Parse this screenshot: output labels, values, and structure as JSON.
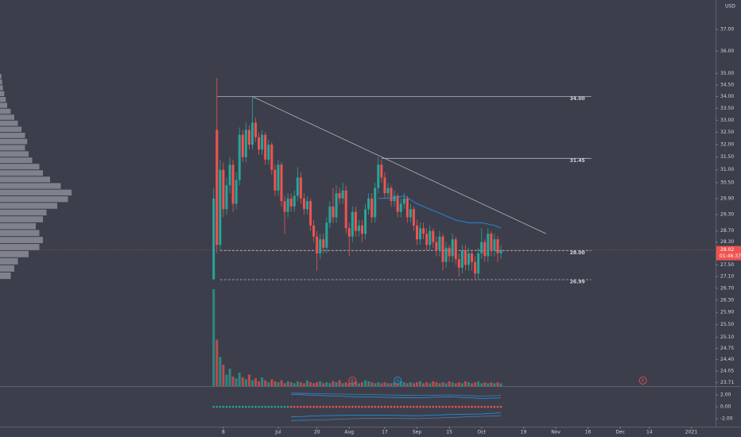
{
  "chart_data": {
    "type": "candlestick",
    "currency": "USD",
    "log_scale": true,
    "colors": {
      "up": "#26a69a",
      "down": "#ef5350",
      "profile": "#9598a1",
      "line": "#b2b5be",
      "ma": "#2196f3",
      "event": "#ef5350"
    },
    "xlim": [
      -69.2,
      152.5
    ],
    "ylim": [
      23.6,
      38.4
    ],
    "yticks": [
      {
        "value": 37,
        "label": "37.00"
      },
      {
        "value": 36,
        "label": "36.00"
      },
      {
        "value": 35,
        "label": "35.00"
      },
      {
        "value": 34.5,
        "label": "34.50"
      },
      {
        "value": 34,
        "label": "34.00"
      },
      {
        "value": 33.5,
        "label": "33.50"
      },
      {
        "value": 33,
        "label": "33.00"
      },
      {
        "value": 32.5,
        "label": "32.50"
      },
      {
        "value": 32,
        "label": "32.00"
      },
      {
        "value": 31.5,
        "label": "31.50"
      },
      {
        "value": 31,
        "label": "31.00"
      },
      {
        "value": 30.5,
        "label": "30.50"
      },
      {
        "value": 29.9,
        "label": "29.90"
      },
      {
        "value": 29.3,
        "label": "29.30"
      },
      {
        "value": 28.7,
        "label": "28.70"
      },
      {
        "value": 28.3,
        "label": "28.30"
      },
      {
        "value": 27.5,
        "label": "27.50"
      },
      {
        "value": 27.1,
        "label": "27.10"
      },
      {
        "value": 26.7,
        "label": "26.70"
      },
      {
        "value": 26.3,
        "label": "26.30"
      },
      {
        "value": 25.9,
        "label": "25.90"
      },
      {
        "value": 25.5,
        "label": "25.50"
      },
      {
        "value": 25.1,
        "label": "25.10"
      },
      {
        "value": 24.75,
        "label": "24.75"
      },
      {
        "value": 24.4,
        "label": "24.40"
      },
      {
        "value": 24.05,
        "label": "24.05"
      },
      {
        "value": 23.71,
        "label": "23.71"
      }
    ],
    "xticks": [
      {
        "value": 0,
        "label": "8"
      },
      {
        "value": 17,
        "label": "Jul"
      },
      {
        "value": 29,
        "label": "20"
      },
      {
        "value": 39,
        "label": "Aug"
      },
      {
        "value": 50,
        "label": "17"
      },
      {
        "value": 60,
        "label": "Sep"
      },
      {
        "value": 70,
        "label": "15"
      },
      {
        "value": 80,
        "label": "Oct"
      },
      {
        "value": 93,
        "label": "19"
      },
      {
        "value": 103,
        "label": "Nov"
      },
      {
        "value": 113,
        "label": "16"
      },
      {
        "value": 123,
        "label": "Dec"
      },
      {
        "value": 132,
        "label": "14"
      },
      {
        "value": 145,
        "label": "2021"
      }
    ],
    "x": [
      -3,
      -2,
      -1,
      0,
      1,
      2,
      3,
      4,
      5,
      6,
      7,
      8,
      9,
      10,
      11,
      12,
      13,
      14,
      15,
      16,
      17,
      18,
      19,
      20,
      21,
      22,
      23,
      24,
      25,
      26,
      27,
      28,
      29,
      30,
      31,
      32,
      33,
      34,
      35,
      36,
      37,
      38,
      39,
      40,
      41,
      42,
      43,
      44,
      45,
      46,
      47,
      48,
      49,
      50,
      51,
      52,
      53,
      54,
      55,
      56,
      57,
      58,
      59,
      60,
      61,
      62,
      63,
      64,
      65,
      66,
      67,
      68,
      69,
      70,
      71,
      72,
      73,
      74,
      75,
      76,
      77,
      78,
      79,
      80,
      81,
      82,
      83,
      84,
      85,
      86
    ],
    "candles": [
      [
        27.0,
        30.3,
        26.99,
        29.9
      ],
      [
        32.6,
        34.8,
        27.9,
        28.2
      ],
      [
        28.2,
        31.4,
        28.0,
        31.0
      ],
      [
        31.0,
        31.3,
        29.2,
        29.5
      ],
      [
        29.5,
        30.7,
        29.3,
        30.4
      ],
      [
        30.4,
        31.5,
        30.1,
        31.2
      ],
      [
        31.2,
        31.4,
        29.4,
        29.7
      ],
      [
        29.7,
        30.9,
        29.5,
        30.6
      ],
      [
        30.6,
        32.7,
        30.4,
        32.4
      ],
      [
        32.4,
        32.6,
        31.3,
        31.5
      ],
      [
        31.5,
        32.9,
        31.3,
        32.6
      ],
      [
        32.6,
        32.8,
        31.8,
        32.0
      ],
      [
        32.0,
        34.0,
        31.8,
        32.9
      ],
      [
        32.9,
        33.1,
        32.1,
        32.3
      ],
      [
        32.3,
        32.5,
        31.6,
        31.8
      ],
      [
        31.8,
        32.6,
        31.6,
        32.4
      ],
      [
        32.4,
        32.5,
        31.2,
        31.4
      ],
      [
        31.4,
        32.2,
        31.2,
        32.0
      ],
      [
        32.0,
        32.1,
        30.8,
        31.0
      ],
      [
        31.0,
        31.2,
        30.0,
        30.2
      ],
      [
        30.2,
        31.4,
        30.0,
        31.2
      ],
      [
        31.2,
        31.3,
        29.6,
        29.8
      ],
      [
        29.8,
        30.0,
        28.6,
        29.4
      ],
      [
        29.4,
        30.1,
        29.2,
        29.9
      ],
      [
        29.9,
        30.1,
        29.4,
        29.6
      ],
      [
        29.6,
        30.2,
        29.4,
        30.0
      ],
      [
        30.0,
        31.1,
        29.8,
        30.7
      ],
      [
        30.7,
        30.9,
        29.7,
        29.9
      ],
      [
        29.9,
        30.1,
        29.3,
        29.5
      ],
      [
        29.5,
        30.0,
        29.3,
        29.8
      ],
      [
        29.8,
        29.9,
        28.7,
        28.9
      ],
      [
        28.9,
        29.1,
        28.3,
        28.5
      ],
      [
        28.5,
        28.7,
        27.3,
        27.9
      ],
      [
        27.9,
        28.6,
        27.7,
        28.4
      ],
      [
        28.4,
        28.6,
        27.9,
        28.1
      ],
      [
        28.1,
        29.2,
        27.9,
        29.0
      ],
      [
        29.0,
        29.8,
        28.8,
        29.6
      ],
      [
        29.6,
        30.3,
        29.0,
        29.2
      ],
      [
        29.2,
        30.4,
        29.0,
        30.1
      ],
      [
        30.1,
        30.3,
        29.7,
        29.9
      ],
      [
        29.9,
        30.5,
        29.7,
        30.2
      ],
      [
        30.2,
        30.4,
        28.6,
        28.8
      ],
      [
        28.8,
        29.0,
        27.8,
        28.5
      ],
      [
        28.5,
        29.6,
        28.3,
        29.4
      ],
      [
        29.4,
        29.6,
        28.5,
        28.7
      ],
      [
        28.7,
        29.1,
        28.5,
        28.9
      ],
      [
        28.9,
        29.1,
        28.3,
        28.6
      ],
      [
        28.6,
        29.7,
        28.4,
        29.5
      ],
      [
        29.5,
        30.1,
        29.3,
        29.9
      ],
      [
        29.9,
        30.1,
        29.0,
        29.2
      ],
      [
        29.2,
        30.5,
        29.0,
        30.3
      ],
      [
        30.3,
        31.5,
        30.1,
        31.2
      ],
      [
        31.2,
        31.4,
        30.5,
        30.7
      ],
      [
        30.7,
        30.9,
        29.9,
        30.1
      ],
      [
        30.1,
        30.5,
        29.9,
        30.3
      ],
      [
        30.3,
        30.4,
        29.6,
        29.8
      ],
      [
        29.8,
        30.2,
        29.6,
        30.0
      ],
      [
        30.0,
        30.1,
        29.2,
        29.4
      ],
      [
        29.4,
        29.9,
        29.2,
        29.7
      ],
      [
        29.7,
        30.1,
        29.5,
        29.9
      ],
      [
        29.9,
        30.0,
        29.0,
        29.2
      ],
      [
        29.2,
        29.7,
        29.0,
        29.5
      ],
      [
        29.5,
        29.6,
        28.7,
        28.9
      ],
      [
        28.9,
        29.1,
        28.2,
        28.4
      ],
      [
        28.4,
        29.0,
        28.2,
        28.8
      ],
      [
        28.8,
        29.0,
        28.4,
        28.6
      ],
      [
        28.6,
        28.8,
        28.0,
        28.2
      ],
      [
        28.2,
        28.9,
        28.0,
        28.7
      ],
      [
        28.7,
        28.8,
        28.1,
        28.3
      ],
      [
        28.3,
        28.5,
        27.8,
        28.0
      ],
      [
        28.0,
        28.7,
        27.8,
        28.5
      ],
      [
        28.5,
        28.6,
        27.3,
        27.6
      ],
      [
        27.6,
        28.3,
        27.4,
        28.1
      ],
      [
        28.1,
        28.2,
        27.6,
        27.8
      ],
      [
        27.8,
        28.6,
        27.6,
        28.4
      ],
      [
        28.4,
        28.5,
        27.5,
        27.7
      ],
      [
        27.7,
        27.9,
        27.1,
        27.4
      ],
      [
        27.4,
        28.2,
        27.2,
        28.0
      ],
      [
        28.0,
        28.2,
        27.3,
        27.5
      ],
      [
        27.5,
        28.1,
        27.3,
        27.9
      ],
      [
        27.9,
        28.0,
        27.3,
        27.6
      ],
      [
        27.6,
        27.8,
        26.99,
        27.2
      ],
      [
        27.2,
        28.1,
        27.0,
        27.9
      ],
      [
        27.9,
        28.8,
        27.7,
        28.3
      ],
      [
        28.3,
        28.4,
        27.6,
        27.8
      ],
      [
        27.8,
        28.8,
        27.6,
        28.6
      ],
      [
        28.6,
        28.7,
        27.8,
        28.0
      ],
      [
        28.0,
        28.6,
        27.8,
        28.4
      ],
      [
        28.4,
        28.5,
        27.6,
        27.9
      ],
      [
        27.9,
        28.2,
        27.7,
        28.02
      ]
    ],
    "volume": {
      "ylim": [
        0,
        100
      ],
      "values": [
        100,
        48,
        30,
        22,
        12,
        18,
        10,
        8,
        14,
        9,
        7,
        12,
        6,
        8,
        5,
        9,
        6,
        4,
        7,
        5,
        4,
        6,
        3,
        5,
        4,
        3,
        5,
        4,
        3,
        6,
        4,
        3,
        4,
        5,
        3,
        4,
        3,
        5,
        4,
        6,
        3,
        4,
        3,
        4,
        5,
        3,
        4,
        6,
        5,
        4,
        3,
        4,
        3,
        4,
        3,
        3,
        4,
        3,
        5,
        4,
        3,
        4,
        3,
        4,
        5,
        3,
        4,
        3,
        5,
        4,
        3,
        4,
        3,
        5,
        4,
        3,
        4,
        3,
        5,
        4,
        3,
        4,
        5,
        3,
        4,
        3,
        4,
        3,
        4,
        3
      ]
    },
    "ma": {
      "x": [
        48,
        52,
        56,
        60,
        64,
        68,
        72,
        76,
        80,
        84,
        86
      ],
      "values": [
        29.9,
        29.9,
        30.0,
        29.7,
        29.5,
        29.3,
        29.1,
        29.0,
        29.0,
        28.9,
        28.8
      ]
    },
    "trendline": {
      "x": [
        9,
        100
      ],
      "values": [
        34.0,
        28.6
      ]
    },
    "levels": [
      {
        "value": 34.0,
        "label": "34.00",
        "from": -2,
        "to": 114,
        "dashed": false
      },
      {
        "value": 31.45,
        "label": "31.45",
        "from": 49,
        "to": 114,
        "dashed": false
      },
      {
        "value": 28.0,
        "label": "28.00",
        "from": -1,
        "to": 114,
        "dashed": true
      },
      {
        "value": 26.99,
        "label": "26.99",
        "from": -1,
        "to": 114,
        "dashed": true
      }
    ],
    "current": {
      "value": 28.02,
      "label": "28.02",
      "countdown": "01:46:37"
    },
    "events": [
      {
        "x": 40,
        "label": "E",
        "color": "#ef5350"
      },
      {
        "x": 54,
        "label": "D",
        "color": "#2196f3"
      },
      {
        "x": 130,
        "label": "E",
        "color": "#ef5350"
      }
    ],
    "profile": {
      "xlim": [
        0,
        100
      ],
      "prices": [
        27.0,
        27.25,
        27.5,
        27.75,
        28.0,
        28.25,
        28.5,
        28.75,
        29.0,
        29.25,
        29.5,
        29.75,
        30.0,
        30.25,
        30.5,
        30.75,
        31.0,
        31.25,
        31.5,
        31.75,
        32.0,
        32.25,
        32.5,
        32.75,
        33.0,
        33.25,
        33.5,
        33.75,
        34.0,
        34.25,
        34.5,
        34.75,
        35.0
      ],
      "values": [
        15,
        20,
        25,
        40,
        55,
        60,
        55,
        50,
        60,
        65,
        80,
        95,
        100,
        85,
        70,
        60,
        55,
        45,
        40,
        35,
        38,
        35,
        30,
        25,
        20,
        15,
        10,
        8,
        6,
        4,
        3,
        2
      ]
    },
    "indicator": {
      "ylim": [
        -3.33,
        3.33
      ],
      "yticks": [
        {
          "value": 2,
          "label": "2.00"
        },
        {
          "value": 0,
          "label": "0.00"
        },
        {
          "value": -2,
          "label": "-2.00"
        }
      ],
      "bands": [
        {
          "color": "#4a7fb5",
          "x": [
            21,
            30,
            40,
            50,
            60,
            70,
            80,
            86
          ],
          "values": [
            2.3,
            2.2,
            2.1,
            2.0,
            1.9,
            2.0,
            1.8,
            1.9
          ]
        },
        {
          "color": "#2196f3",
          "x": [
            21,
            30,
            40,
            50,
            60,
            70,
            80,
            86
          ],
          "values": [
            2.1,
            1.9,
            1.7,
            1.6,
            1.5,
            1.7,
            1.4,
            1.5
          ]
        },
        {
          "color": "#2196f3",
          "x": [
            21,
            30,
            40,
            50,
            60,
            70,
            80,
            86
          ],
          "values": [
            -1.7,
            -1.5,
            -1.4,
            -1.4,
            -1.5,
            -1.3,
            -1.2,
            -1.0
          ]
        },
        {
          "color": "#4a7fb5",
          "x": [
            21,
            30,
            40,
            50,
            60,
            70,
            80,
            86
          ],
          "values": [
            -2.3,
            -2.2,
            -2.0,
            -1.9,
            -2.0,
            -1.8,
            -1.6,
            -1.5
          ]
        }
      ],
      "dots": [
        {
          "color": "#26a69a",
          "x": [
            -3,
            -2,
            -1,
            0,
            1,
            2,
            3,
            4,
            5,
            6,
            7,
            8,
            9,
            10,
            11,
            12,
            13,
            14,
            15,
            16,
            17,
            18,
            19,
            20
          ],
          "values": [
            0,
            0,
            0,
            0,
            0,
            0,
            0,
            0,
            0,
            0,
            0,
            0,
            0,
            0,
            0,
            0,
            0,
            0,
            0,
            0,
            0,
            0,
            0,
            0
          ]
        },
        {
          "color": "#ef5350",
          "x": [
            21,
            22,
            23,
            24,
            25,
            26,
            27,
            28,
            29,
            30,
            31,
            32,
            33,
            34,
            35,
            36,
            37,
            38,
            39,
            40,
            41,
            42,
            43,
            44,
            45,
            46,
            47,
            48,
            49,
            50,
            51,
            52,
            53,
            54,
            55,
            56,
            57,
            58,
            59,
            60,
            61,
            62,
            63,
            64,
            65,
            66,
            67,
            68,
            69,
            70,
            71,
            72,
            73,
            74,
            75,
            76,
            77,
            78,
            79,
            80,
            81,
            82,
            83,
            84,
            85,
            86
          ],
          "values": [
            0,
            0,
            0,
            0,
            0,
            0,
            0,
            0,
            0,
            0,
            0,
            0,
            0,
            0,
            0,
            0,
            0,
            0,
            0,
            0,
            0,
            0,
            0,
            0,
            0,
            0,
            0,
            0,
            0,
            0,
            0,
            0,
            0,
            0,
            0,
            0,
            0,
            0,
            0,
            0,
            0,
            0,
            0,
            0,
            0,
            0,
            0,
            0,
            0,
            0,
            0,
            0,
            0,
            0,
            0,
            0,
            0,
            0,
            0,
            0,
            0,
            0,
            0,
            0,
            0,
            0
          ]
        }
      ]
    }
  }
}
